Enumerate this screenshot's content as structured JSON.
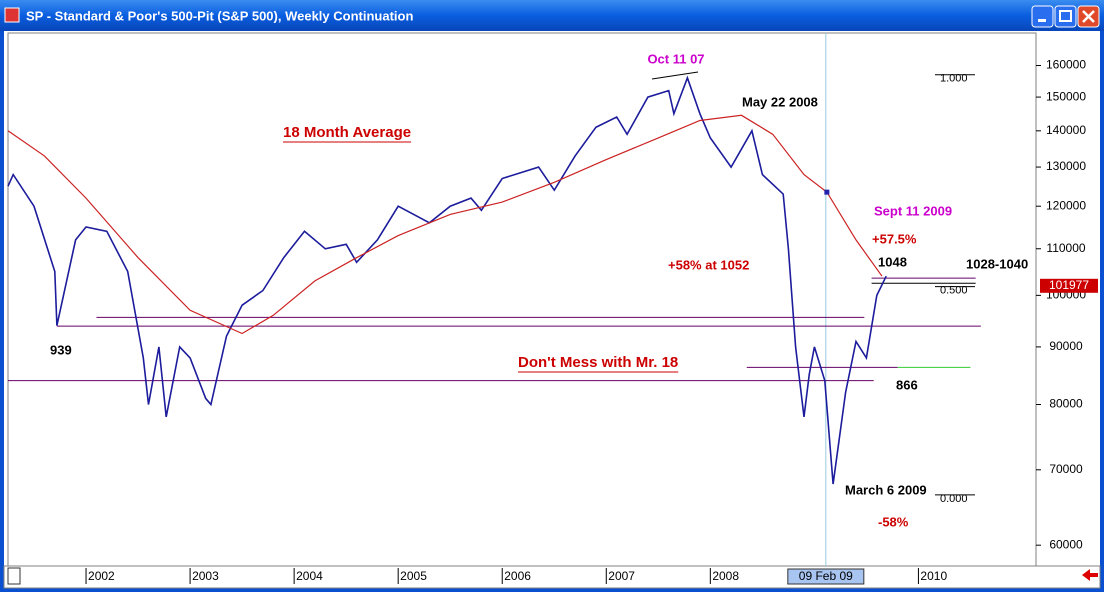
{
  "window_title": "SP - Standard & Poor's 500-Pit (S&P 500), Weekly Continuation",
  "chart_data": {
    "type": "line",
    "log_scale": true,
    "xlim": [
      2001.25,
      2011.13
    ],
    "xticks": [
      2002,
      2003,
      2004,
      2005,
      2006,
      2007,
      2008,
      2010
    ],
    "ylim": [
      57500,
      171000
    ],
    "yticks": [
      60000,
      70000,
      80000,
      90000,
      100000,
      110000,
      120000,
      130000,
      140000,
      150000,
      160000
    ],
    "series": [
      {
        "name": "SP",
        "color": "#1c1c9c",
        "x": [
          2001.25,
          2001.3,
          2001.5,
          2001.7,
          2001.72,
          2001.9,
          2002.0,
          2002.2,
          2002.4,
          2002.55,
          2002.6,
          2002.7,
          2002.77,
          2002.9,
          2003.0,
          2003.15,
          2003.2,
          2003.35,
          2003.5,
          2003.7,
          2003.9,
          2004.1,
          2004.3,
          2004.5,
          2004.6,
          2004.8,
          2005.0,
          2005.3,
          2005.5,
          2005.7,
          2005.8,
          2006.0,
          2006.35,
          2006.5,
          2006.7,
          2006.9,
          2007.1,
          2007.2,
          2007.4,
          2007.6,
          2007.65,
          2007.78,
          2007.9,
          2008.0,
          2008.2,
          2008.4,
          2008.5,
          2008.7,
          2008.75,
          2008.82,
          2008.9,
          2008.95,
          2009.0,
          2009.1,
          2009.18,
          2009.3,
          2009.4,
          2009.5,
          2009.6,
          2009.69
        ],
        "values": [
          125000,
          128000,
          120000,
          105000,
          94000,
          112000,
          115000,
          114000,
          105000,
          88000,
          80000,
          90000,
          78000,
          90000,
          88000,
          81000,
          80000,
          92000,
          98000,
          101000,
          108000,
          114000,
          110000,
          111000,
          107000,
          112000,
          120000,
          116000,
          120000,
          122000,
          119000,
          127000,
          130000,
          124000,
          133000,
          141000,
          144000,
          139000,
          150000,
          152000,
          145000,
          156000,
          145000,
          138000,
          130000,
          140000,
          128000,
          123000,
          110000,
          90000,
          78000,
          85000,
          90000,
          84000,
          68000,
          82000,
          91000,
          88000,
          100000,
          104000
        ]
      },
      {
        "name": "18 Month Average",
        "color": "#cc2222",
        "x": [
          2001.25,
          2001.6,
          2002.0,
          2002.5,
          2003.0,
          2003.5,
          2003.8,
          2004.2,
          2004.6,
          2005.0,
          2005.5,
          2006.0,
          2006.5,
          2007.0,
          2007.5,
          2007.9,
          2008.3,
          2008.6,
          2008.9,
          2009.12,
          2009.4,
          2009.65
        ],
        "values": [
          140000,
          133000,
          122000,
          108000,
          97000,
          92500,
          96000,
          103000,
          108000,
          113000,
          118000,
          121000,
          126000,
          132000,
          138000,
          143000,
          144500,
          139000,
          128000,
          123500,
          112000,
          104000
        ]
      }
    ],
    "hlines": [
      {
        "value": 93900,
        "from": 2001.72,
        "to": 2010.6,
        "color": "#660066"
      },
      {
        "value": 95600,
        "from": 2002.1,
        "to": 2009.48,
        "color": "#660066"
      },
      {
        "value": 84000,
        "from": 2001.25,
        "to": 2009.57,
        "color": "#660066"
      },
      {
        "value": 86300,
        "from": 2008.35,
        "to": 2009.8,
        "color": "#660066"
      },
      {
        "value": 86300,
        "from": 2009.8,
        "to": 2010.5,
        "color": "#33cc33"
      },
      {
        "value": 103600,
        "from": 2009.55,
        "to": 2010.55,
        "color": "#660066"
      },
      {
        "value": 102500,
        "from": 2009.55,
        "to": 2010.55,
        "color": "#000000"
      }
    ],
    "annotations": [
      "Oct 11 07",
      "May 22 2008",
      "18 Month Average",
      "Sept 11 2009",
      "+57.5%",
      "+58% at 1052",
      "1048",
      "1028-1040",
      "939",
      "Don't Mess with Mr. 18",
      "866",
      "March 6 2009",
      "-58%"
    ],
    "fib_levels": [
      {
        "value": 157000,
        "label": "1.000"
      },
      {
        "value": 101800,
        "label": "0.500"
      },
      {
        "value": 66500,
        "label": "0.000"
      }
    ],
    "last_price": {
      "value": 101977,
      "label": "101977"
    },
    "cursor": {
      "value": 2009.11,
      "label": "09 Feb 09"
    }
  }
}
